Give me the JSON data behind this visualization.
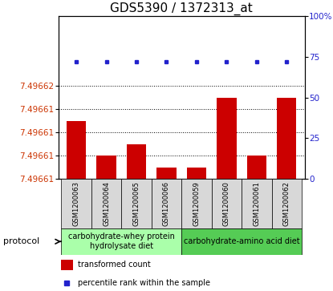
{
  "title": "GDS5390 / 1372313_at",
  "samples": [
    "GSM1200063",
    "GSM1200064",
    "GSM1200065",
    "GSM1200066",
    "GSM1200059",
    "GSM1200060",
    "GSM1200061",
    "GSM1200062"
  ],
  "transformed_counts": [
    7.496613,
    7.49661,
    7.496611,
    7.496609,
    7.496609,
    7.496615,
    7.49661,
    7.496615
  ],
  "percentile_ranks": [
    72,
    72,
    72,
    72,
    72,
    72,
    72,
    72
  ],
  "y_min": 7.496608,
  "y_max": 7.496622,
  "left_yticks": [
    7.496608,
    7.49661,
    7.496612,
    7.496614,
    7.496616
  ],
  "left_yticklabels": [
    "7.49661",
    "7.49661",
    "7.49661",
    "7.49661",
    "7.49662"
  ],
  "right_yticks": [
    0,
    25,
    50,
    75,
    100
  ],
  "right_yticklabels": [
    "0",
    "25",
    "50",
    "75",
    "100%"
  ],
  "bar_color": "#cc0000",
  "dot_color": "#2222cc",
  "left_tick_color": "#cc3300",
  "right_tick_color": "#2222cc",
  "bg_color": "#ffffff",
  "sample_box_color": "#d8d8d8",
  "proto1_color": "#aaffaa",
  "proto2_color": "#55cc55",
  "proto1_label": "carbohydrate-whey protein\nhydrolysate diet",
  "proto2_label": "carbohydrate-amino acid diet",
  "legend_red_label": "transformed count",
  "legend_blue_label": "percentile rank within the sample",
  "title_fontsize": 11,
  "axis_fontsize": 7.5,
  "sample_fontsize": 6,
  "proto_fontsize": 7,
  "legend_fontsize": 7
}
